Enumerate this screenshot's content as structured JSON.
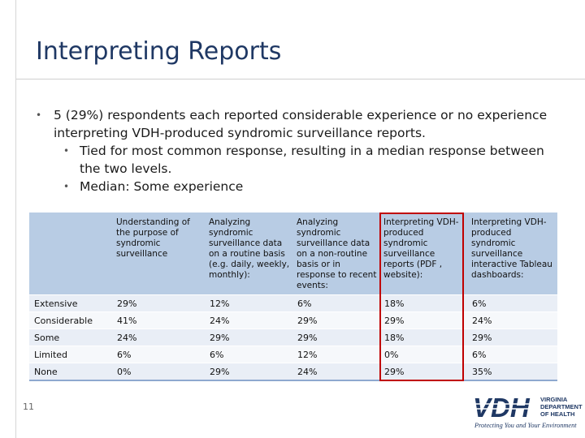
{
  "slide": {
    "title": "Interpreting Reports",
    "page_number": "11"
  },
  "bullets": {
    "main": "5 (29%) respondents each reported considerable experience or no experience interpreting VDH-produced syndromic surveillance reports.",
    "sub1": "Tied for most common response, resulting in a median response between the two levels.",
    "sub2": "Median: Some experience"
  },
  "table": {
    "headers": [
      "",
      "Understanding of the purpose of syndromic surveillance",
      "Analyzing syndromic surveillance data on a routine basis (e.g. daily, weekly, monthly):",
      "Analyzing syndromic surveillance data on a non-routine basis or in response to recent events:",
      "Interpreting VDH-produced syndromic surveillance reports (PDF , website):",
      "Interpreting VDH-produced syndromic surveillance interactive Tableau dashboards:"
    ],
    "rows": [
      [
        "Extensive",
        "29%",
        "12%",
        "6%",
        "18%",
        "6%"
      ],
      [
        "Considerable",
        "41%",
        "24%",
        "29%",
        "29%",
        "24%"
      ],
      [
        "Some",
        "24%",
        "29%",
        "29%",
        "18%",
        "29%"
      ],
      [
        "Limited",
        "6%",
        "6%",
        "12%",
        "0%",
        "6%"
      ],
      [
        "None",
        "0%",
        "29%",
        "24%",
        "29%",
        "35%"
      ]
    ]
  },
  "logo": {
    "word": "VDH",
    "line1": "VIRGINIA",
    "line2": "DEPARTMENT",
    "line3": "OF HEALTH",
    "tagline": "Protecting You and Your Environment"
  },
  "colors": {
    "title": "#1f3864",
    "header_fill": "#b8cce4",
    "highlight": "#c00000",
    "logo": "#1f3864"
  }
}
